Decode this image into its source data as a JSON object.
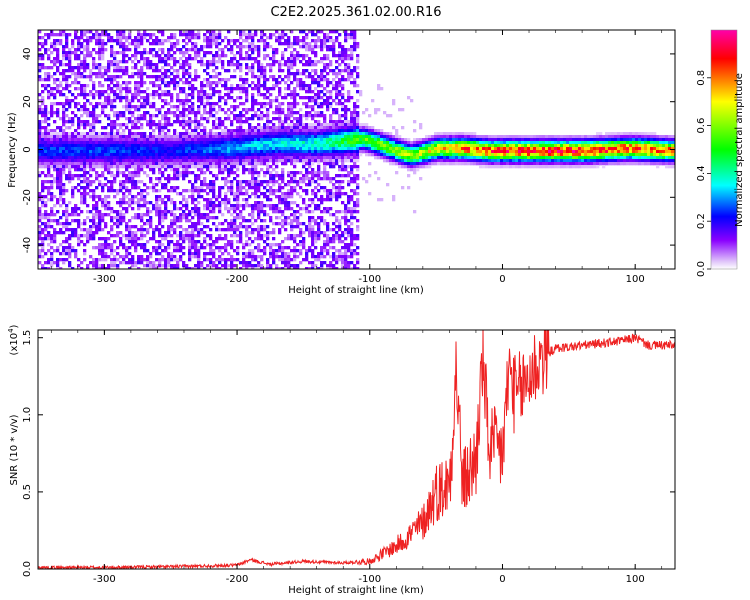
{
  "title": "C2E2.2025.361.02.00.R16",
  "chart_data": [
    {
      "type": "heatmap",
      "title": "C2E2.2025.361.02.00.R16",
      "xlabel": "Height of straight line (km)",
      "ylabel": "Frequency (Hz)",
      "xlim": [
        -350,
        130
      ],
      "ylim": [
        -50,
        50
      ],
      "xticks": [
        -300,
        -200,
        -100,
        0,
        100
      ],
      "xtick_labels": [
        "-300",
        "-200",
        "-100",
        "0",
        "100"
      ],
      "yticks": [
        -40,
        -20,
        0,
        20,
        40
      ],
      "ytick_labels": [
        "-40",
        "-20",
        "0",
        "20",
        "40"
      ],
      "noise_region_end_x": -110,
      "signal_profile": [
        {
          "x": -290,
          "freq": 0,
          "amp": 0.25
        },
        {
          "x": -250,
          "freq": 0,
          "amp": 0.22
        },
        {
          "x": -210,
          "freq": 1,
          "amp": 0.3
        },
        {
          "x": -170,
          "freq": 3,
          "amp": 0.35
        },
        {
          "x": -140,
          "freq": 3,
          "amp": 0.38
        },
        {
          "x": -105,
          "freq": 5,
          "amp": 0.55
        },
        {
          "x": -90,
          "freq": 2,
          "amp": 0.6
        },
        {
          "x": -70,
          "freq": -2,
          "amp": 0.62
        },
        {
          "x": -50,
          "freq": 1,
          "amp": 0.7
        },
        {
          "x": -30,
          "freq": 1,
          "amp": 0.8
        },
        {
          "x": -10,
          "freq": 0,
          "amp": 0.85
        },
        {
          "x": 20,
          "freq": 0,
          "amp": 0.9
        },
        {
          "x": 60,
          "freq": 0,
          "amp": 0.88
        },
        {
          "x": 95,
          "freq": 1,
          "amp": 0.85
        },
        {
          "x": 130,
          "freq": 0,
          "amp": 0.8
        }
      ],
      "colorbar": {
        "label": "Normalized spectral amplitude",
        "range": [
          0,
          1
        ],
        "ticks": [
          0.0,
          0.2,
          0.4,
          0.6,
          0.8
        ],
        "tick_labels": [
          "0.0",
          "0.2",
          "0.4",
          "0.6",
          "0.8"
        ],
        "colors": [
          "#ffffff",
          "#8a00ff",
          "#0000ff",
          "#00ffff",
          "#00ff00",
          "#ffff00",
          "#ff0000",
          "#ff00aa"
        ]
      }
    },
    {
      "type": "line",
      "xlabel": "Height of straight line (km)",
      "ylabel": "SNR (10 * v/v)",
      "scale_label": "(x10",
      "scale_exp": "4",
      "scale_close": ")",
      "xlim": [
        -350,
        130
      ],
      "ylim": [
        0,
        1.55
      ],
      "xticks": [
        -300,
        -200,
        -100,
        0,
        100
      ],
      "xtick_labels": [
        "-300",
        "-200",
        "-100",
        "0",
        "100"
      ],
      "yticks": [
        0.0,
        0.5,
        1.0,
        1.5
      ],
      "ytick_labels": [
        "0.0",
        "0.5",
        "1.0",
        "1.5"
      ],
      "color": "#ee2222",
      "series": [
        {
          "name": "SNR",
          "points": [
            [
              -350,
              0.01
            ],
            [
              -300,
              0.01
            ],
            [
              -250,
              0.015
            ],
            [
              -200,
              0.025
            ],
            [
              -190,
              0.06
            ],
            [
              -175,
              0.03
            ],
            [
              -150,
              0.05
            ],
            [
              -120,
              0.04
            ],
            [
              -100,
              0.05
            ],
            [
              -90,
              0.1
            ],
            [
              -80,
              0.15
            ],
            [
              -70,
              0.22
            ],
            [
              -60,
              0.3
            ],
            [
              -50,
              0.5
            ],
            [
              -40,
              0.55
            ],
            [
              -35,
              1.3
            ],
            [
              -30,
              0.55
            ],
            [
              -20,
              0.7
            ],
            [
              -15,
              1.35
            ],
            [
              -10,
              0.8
            ],
            [
              0,
              0.75
            ],
            [
              5,
              1.3
            ],
            [
              10,
              1.1
            ],
            [
              20,
              1.25
            ],
            [
              30,
              1.38
            ],
            [
              40,
              1.43
            ],
            [
              60,
              1.45
            ],
            [
              90,
              1.48
            ],
            [
              100,
              1.5
            ],
            [
              110,
              1.45
            ],
            [
              130,
              1.45
            ]
          ]
        }
      ]
    }
  ]
}
